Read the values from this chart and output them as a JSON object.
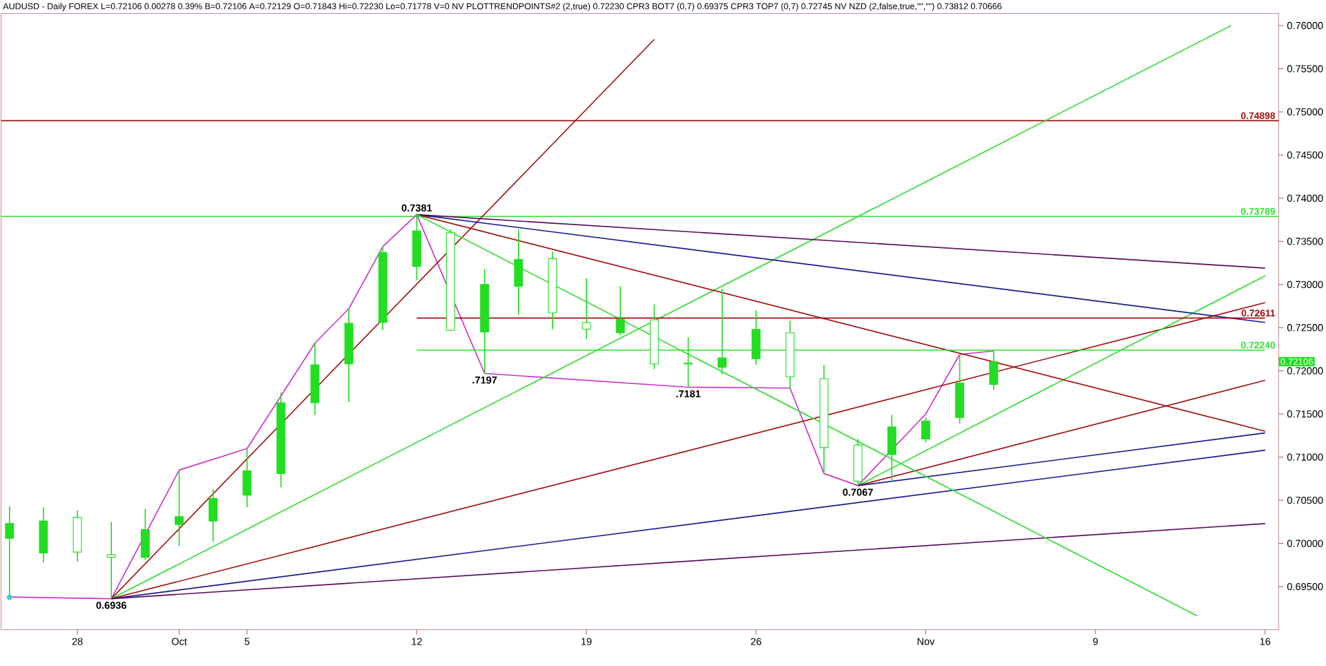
{
  "chart_data": {
    "type": "candlestick",
    "title": "AUDUSD - Daily  FOREX  L=0.72106  0.00278  0.39%  B=0.72106  A=0.72129  O=0.71843  Hi=0.72230  Lo=0.71778  V=0  NV  PLOTTRENDPOINTS#2 (2,true)  0.72230  CPR3 BOT7 (0,7)  0.69375  CPR3 TOP7 (0,7)  0.72745  NV NZD (2,false,true,\"\",\"\")  0.73812  0.70666",
    "categories": [
      null,
      null,
      "28",
      null,
      null,
      "Oct",
      null,
      "5",
      null,
      null,
      null,
      null,
      "12",
      null,
      null,
      null,
      null,
      "19",
      null,
      null,
      null,
      null,
      "26",
      null,
      null,
      null,
      null,
      "Nov",
      null,
      null,
      null,
      null,
      "9",
      null,
      null,
      null,
      null,
      "16"
    ],
    "color": "#22dd22",
    "ohlc": [
      [
        0.7006,
        0.7043,
        0.6939,
        0.7023
      ],
      [
        0.6989,
        0.7042,
        0.6978,
        0.7026
      ],
      [
        0.703,
        0.7038,
        0.6979,
        0.699
      ],
      [
        0.6987,
        0.7025,
        0.6936,
        0.6984
      ],
      [
        0.6984,
        0.704,
        0.6981,
        0.7016
      ],
      [
        0.7022,
        0.7085,
        0.6997,
        0.7031
      ],
      [
        0.7026,
        0.7063,
        0.7002,
        0.7052
      ],
      [
        0.7056,
        0.711,
        0.7042,
        0.7084
      ],
      [
        0.7081,
        0.7175,
        0.7065,
        0.7163
      ],
      [
        0.7163,
        0.7232,
        0.7149,
        0.7207
      ],
      [
        0.7208,
        0.7272,
        0.7164,
        0.7255
      ],
      [
        0.7256,
        0.7344,
        0.7247,
        0.7337
      ],
      [
        0.7321,
        0.7381,
        0.7305,
        0.7362
      ],
      [
        0.736,
        0.7364,
        0.7246,
        0.7247
      ],
      [
        0.7245,
        0.7318,
        0.7197,
        0.73
      ],
      [
        0.7298,
        0.7364,
        0.7265,
        0.7329
      ],
      [
        0.733,
        0.7338,
        0.7248,
        0.7267
      ],
      [
        0.7256,
        0.7307,
        0.7237,
        0.7248
      ],
      [
        0.7244,
        0.7298,
        0.7241,
        0.726
      ],
      [
        0.7259,
        0.7277,
        0.7202,
        0.7208
      ],
      [
        0.7208,
        0.7239,
        0.7181,
        0.7209
      ],
      [
        0.7204,
        0.7295,
        0.7196,
        0.7215
      ],
      [
        0.7214,
        0.727,
        0.7207,
        0.7248
      ],
      [
        0.7244,
        0.7258,
        0.718,
        0.7193
      ],
      [
        0.7191,
        0.7207,
        0.7081,
        0.7111
      ],
      [
        0.7114,
        0.7121,
        0.7067,
        0.7072
      ],
      [
        0.7103,
        0.7149,
        0.7071,
        0.7135
      ],
      [
        0.7121,
        0.7146,
        0.7117,
        0.7142
      ],
      [
        0.7146,
        0.7219,
        0.7139,
        0.7186
      ],
      [
        0.71843,
        0.7223,
        0.71778,
        0.72106
      ],
      null,
      null,
      null,
      null,
      null,
      null,
      null,
      null
    ],
    "series": [
      {
        "type": "line",
        "color": "#cc33cc",
        "values": [
          0.6938,
          null,
          null,
          0.6936,
          null,
          0.7085,
          null,
          0.711,
          null,
          0.7232,
          0.7272,
          0.7344,
          0.7381,
          null,
          0.7197,
          null,
          null,
          null,
          null,
          null,
          0.7181,
          null,
          null,
          0.718,
          0.7081,
          0.7067,
          null,
          0.715,
          0.7219,
          0.7223,
          null,
          null,
          null,
          null,
          null,
          null,
          null,
          null
        ]
      },
      {
        "type": "line",
        "color": "#a01010",
        "values": [
          null,
          null,
          null,
          0.6936,
          null,
          null,
          null,
          null,
          null,
          null,
          null,
          null,
          null,
          null,
          null,
          null,
          null,
          null,
          null,
          0.7584,
          null,
          null,
          null,
          null,
          null,
          null,
          null,
          null,
          null,
          null,
          null,
          null,
          null,
          null,
          null,
          null,
          null,
          null
        ]
      },
      {
        "type": "line",
        "color": "#33dd33",
        "values": [
          null,
          null,
          null,
          0.6936,
          null,
          null,
          null,
          null,
          null,
          null,
          null,
          null,
          null,
          null,
          null,
          null,
          null,
          null,
          null,
          null,
          null,
          null,
          null,
          null,
          null,
          null,
          null,
          null,
          null,
          null,
          null,
          null,
          null,
          null,
          null,
          null,
          0.76,
          null
        ]
      },
      {
        "type": "line",
        "color": "#a01010",
        "values": [
          null,
          null,
          null,
          0.6936,
          null,
          null,
          null,
          null,
          null,
          null,
          null,
          null,
          null,
          null,
          null,
          null,
          null,
          null,
          null,
          null,
          null,
          null,
          null,
          null,
          null,
          null,
          null,
          null,
          null,
          null,
          null,
          null,
          null,
          null,
          null,
          null,
          null,
          0.7279
        ]
      },
      {
        "type": "line",
        "color": "#1a1a8c",
        "values": [
          null,
          null,
          null,
          0.6936,
          null,
          null,
          null,
          null,
          null,
          null,
          null,
          null,
          null,
          null,
          null,
          null,
          null,
          null,
          null,
          null,
          null,
          null,
          null,
          null,
          null,
          null,
          null,
          null,
          null,
          null,
          null,
          null,
          null,
          null,
          null,
          null,
          null,
          0.7108
        ]
      },
      {
        "type": "line",
        "color": "#5a0a5a",
        "values": [
          null,
          null,
          null,
          0.6936,
          null,
          null,
          null,
          null,
          null,
          null,
          null,
          null,
          null,
          null,
          null,
          null,
          null,
          null,
          null,
          null,
          null,
          null,
          null,
          null,
          null,
          null,
          null,
          null,
          null,
          null,
          null,
          null,
          null,
          null,
          null,
          null,
          null,
          0.7023
        ]
      },
      {
        "type": "line",
        "color": "#33dd33",
        "values": [
          null,
          null,
          null,
          null,
          null,
          null,
          null,
          null,
          null,
          null,
          null,
          null,
          null,
          null,
          null,
          null,
          null,
          null,
          null,
          null,
          null,
          null,
          null,
          null,
          null,
          0.7067,
          null,
          null,
          null,
          null,
          null,
          null,
          null,
          null,
          null,
          null,
          null,
          0.731
        ]
      },
      {
        "type": "line",
        "color": "#a01010",
        "values": [
          null,
          null,
          null,
          null,
          null,
          null,
          null,
          null,
          null,
          null,
          null,
          null,
          null,
          null,
          null,
          null,
          null,
          null,
          null,
          null,
          null,
          null,
          null,
          null,
          null,
          0.7067,
          null,
          null,
          null,
          null,
          null,
          null,
          null,
          null,
          null,
          null,
          null,
          0.7189
        ]
      },
      {
        "type": "line",
        "color": "#1a1a8c",
        "values": [
          null,
          null,
          null,
          null,
          null,
          null,
          null,
          null,
          null,
          null,
          null,
          null,
          null,
          null,
          null,
          null,
          null,
          null,
          null,
          null,
          null,
          null,
          null,
          null,
          null,
          0.7067,
          null,
          null,
          null,
          null,
          null,
          null,
          null,
          null,
          null,
          null,
          null,
          0.7128
        ]
      },
      {
        "type": "line",
        "color": "#5a0a5a",
        "values": [
          null,
          null,
          null,
          null,
          null,
          null,
          null,
          null,
          null,
          null,
          null,
          null,
          0.7381,
          null,
          null,
          null,
          null,
          null,
          null,
          null,
          null,
          null,
          null,
          null,
          null,
          null,
          null,
          null,
          null,
          null,
          null,
          null,
          null,
          null,
          null,
          null,
          null,
          0.7319
        ]
      },
      {
        "type": "line",
        "color": "#1a1a8c",
        "values": [
          null,
          null,
          null,
          null,
          null,
          null,
          null,
          null,
          null,
          null,
          null,
          null,
          0.7381,
          null,
          null,
          null,
          null,
          null,
          null,
          null,
          null,
          null,
          null,
          null,
          null,
          null,
          null,
          null,
          null,
          null,
          null,
          null,
          null,
          null,
          null,
          null,
          null,
          0.7256
        ]
      },
      {
        "type": "line",
        "color": "#a01010",
        "values": [
          null,
          null,
          null,
          null,
          null,
          null,
          null,
          null,
          null,
          null,
          null,
          null,
          0.7381,
          null,
          null,
          null,
          null,
          null,
          null,
          null,
          null,
          null,
          null,
          null,
          null,
          null,
          null,
          null,
          null,
          null,
          null,
          null,
          null,
          null,
          null,
          null,
          null,
          0.713
        ]
      },
      {
        "type": "line",
        "color": "#33dd33",
        "values": [
          null,
          null,
          null,
          null,
          null,
          null,
          null,
          null,
          null,
          null,
          null,
          null,
          0.7381,
          null,
          null,
          null,
          null,
          null,
          null,
          null,
          null,
          null,
          null,
          null,
          null,
          null,
          null,
          null,
          null,
          null,
          null,
          null,
          null,
          null,
          null,
          0.6916,
          null,
          null
        ]
      },
      {
        "type": "line",
        "name": "0.72611",
        "color": "#a01010",
        "values": [
          null,
          null,
          null,
          null,
          null,
          null,
          null,
          null,
          null,
          null,
          null,
          null,
          0.72611,
          null,
          null,
          null,
          null,
          null,
          null,
          null,
          null,
          null,
          null,
          null,
          null,
          null,
          null,
          null,
          null,
          null,
          null,
          null,
          null,
          null,
          null,
          null,
          null,
          0.72611
        ]
      },
      {
        "type": "line",
        "name": "0.72240",
        "color": "#33dd33",
        "values": [
          null,
          null,
          null,
          null,
          null,
          null,
          null,
          null,
          null,
          null,
          null,
          null,
          0.7224,
          null,
          null,
          null,
          null,
          null,
          null,
          null,
          null,
          null,
          null,
          null,
          null,
          null,
          null,
          null,
          null,
          null,
          null,
          null,
          null,
          null,
          null,
          null,
          null,
          0.7224
        ]
      },
      {
        "type": "scatter",
        "color": "#33ccdd",
        "values": [
          0.69375,
          null,
          null,
          null,
          null,
          null,
          null,
          null,
          null,
          null,
          null,
          null,
          null,
          null,
          null,
          null,
          null,
          null,
          null,
          null,
          null,
          null,
          null,
          null,
          null,
          null,
          null,
          null,
          null,
          null,
          null,
          null,
          null,
          null,
          null,
          null,
          null,
          null
        ]
      }
    ],
    "ref_lines": [
      {
        "axis": "y",
        "value": 0.74898,
        "label": "0.74898",
        "color": "#a01010"
      },
      {
        "axis": "y",
        "value": 0.73789,
        "label": "0.73789",
        "color": "#33dd33"
      }
    ],
    "annotations": [
      {
        "text": "0.7381",
        "y": 0.7381
      },
      {
        "text": ".7197",
        "y": 0.7197
      },
      {
        "text": ".7181",
        "y": 0.7181
      },
      {
        "text": "0.7067",
        "y": 0.7067
      },
      {
        "text": "0.6936",
        "y": 0.6936
      },
      "0.72106"
    ],
    "ylim": [
      0.69,
      0.7614
    ],
    "yticks": [
      {
        "value": 0.695,
        "label": "0.69500"
      },
      {
        "value": 0.7,
        "label": "0.70000"
      },
      {
        "value": 0.705,
        "label": "0.70500"
      },
      {
        "value": 0.71,
        "label": "0.71000"
      },
      {
        "value": 0.715,
        "label": "0.71500"
      },
      {
        "value": 0.72,
        "label": "0.72000"
      },
      {
        "value": 0.725,
        "label": "0.72500"
      },
      {
        "value": 0.73,
        "label": "0.73000"
      },
      {
        "value": 0.735,
        "label": "0.73500"
      },
      {
        "value": 0.74,
        "label": "0.74000"
      },
      {
        "value": 0.745,
        "label": "0.74500"
      },
      {
        "value": 0.75,
        "label": "0.75000"
      },
      {
        "value": 0.755,
        "label": "0.75500"
      },
      {
        "value": 0.76,
        "label": "0.76000"
      }
    ]
  }
}
